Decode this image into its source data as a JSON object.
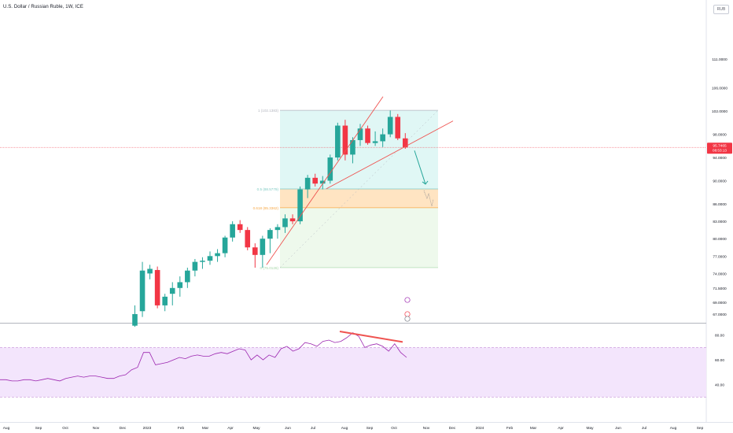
{
  "title": "U.S. Dollar / Russian Ruble, 1W, ICE",
  "currency_button": "RUB",
  "price_axis": [
    "111.0000",
    "106.0000",
    "102.0000",
    "98.0000",
    "94.0000",
    "90.0000",
    "86.0000",
    "83.0000",
    "80.0000",
    "77.0000",
    "74.0000",
    "71.5000",
    "69.0000",
    "67.0000"
  ],
  "current_price": {
    "value": "95.7465",
    "countdown": "08:53:13",
    "color": "#f23645"
  },
  "rsi_axis": [
    "80.00",
    "60.00",
    "40.00"
  ],
  "time_axis": [
    "Aug",
    "Sep",
    "Oct",
    "Nov",
    "Dec",
    "2023",
    "Feb",
    "Mar",
    "Apr",
    "May",
    "Jun",
    "Jul",
    "Aug",
    "Sep",
    "Oct",
    "Nov",
    "Dec",
    "2024",
    "Feb",
    "Mar",
    "Apr",
    "May",
    "Jun",
    "Jul",
    "Aug",
    "Sep"
  ],
  "fib_labels": {
    "level_1": "1 (102.1383)",
    "level_05": "0.5 (88.5779)",
    "level_0618": "0.618 (85.3362)",
    "level_0": "0 (75.0126)"
  },
  "colors": {
    "up": "#26a69a",
    "down": "#f23645",
    "trendline": "#ef5350",
    "arrow": "#26a69a",
    "rsi": "#9c27b0",
    "rsi_band": "#f3e5fc",
    "fib_top": "#e0f7f5",
    "fib_golden": "#ffe4c2",
    "fib_bottom": "#eef9ec"
  },
  "chart_data": {
    "type": "candlestick",
    "symbol": "U.S. Dollar / Russian Ruble",
    "interval": "1W",
    "exchange": "ICE",
    "ohlc": [
      [
        65.0,
        68.5,
        64.8,
        67.0
      ],
      [
        67.5,
        76.0,
        66.5,
        74.5
      ],
      [
        74.0,
        75.5,
        73.0,
        74.8
      ],
      [
        74.6,
        75.2,
        68.0,
        68.5
      ],
      [
        68.5,
        70.5,
        67.5,
        70.0
      ],
      [
        70.5,
        72.5,
        68.5,
        71.5
      ],
      [
        71.5,
        73.5,
        70.0,
        72.5
      ],
      [
        72.5,
        75.0,
        71.5,
        74.5
      ],
      [
        74.5,
        76.5,
        73.5,
        76.0
      ],
      [
        76.0,
        76.8,
        74.8,
        76.2
      ],
      [
        76.2,
        77.8,
        75.5,
        77.0
      ],
      [
        77.0,
        78.2,
        76.0,
        77.5
      ],
      [
        77.5,
        80.5,
        76.8,
        80.2
      ],
      [
        80.2,
        83.0,
        79.5,
        82.5
      ],
      [
        82.5,
        83.2,
        81.0,
        81.5
      ],
      [
        81.5,
        82.0,
        78.0,
        78.5
      ],
      [
        78.5,
        79.2,
        75.0,
        77.2
      ],
      [
        77.2,
        80.5,
        75.0,
        80.0
      ],
      [
        80.0,
        81.8,
        77.5,
        81.5
      ],
      [
        81.5,
        82.5,
        80.0,
        82.0
      ],
      [
        82.0,
        84.2,
        81.0,
        83.5
      ],
      [
        83.5,
        84.2,
        82.5,
        83.0
      ],
      [
        83.0,
        89.0,
        82.5,
        88.5
      ],
      [
        88.5,
        91.0,
        87.0,
        90.5
      ],
      [
        90.5,
        91.2,
        89.0,
        89.5
      ],
      [
        89.5,
        90.8,
        88.5,
        90.0
      ],
      [
        90.0,
        94.5,
        89.5,
        94.0
      ],
      [
        94.0,
        100.0,
        93.5,
        99.5
      ],
      [
        99.5,
        100.5,
        93.5,
        94.5
      ],
      [
        94.5,
        97.5,
        93.0,
        97.0
      ],
      [
        97.0,
        99.8,
        96.0,
        99.0
      ],
      [
        99.0,
        99.5,
        96.2,
        96.5
      ],
      [
        96.5,
        98.5,
        96.0,
        96.8
      ],
      [
        96.8,
        99.0,
        95.8,
        98.0
      ],
      [
        98.0,
        102.1,
        97.5,
        101.0
      ],
      [
        101.0,
        101.5,
        97.0,
        97.3
      ],
      [
        97.3,
        98.2,
        95.5,
        95.75
      ]
    ],
    "fibonacci_retracement": {
      "1": 102.1383,
      "0.5": 88.5779,
      "0.618": 85.3362,
      "0": 75.0126
    },
    "rsi": [
      44,
      44,
      43,
      43,
      44,
      44,
      43,
      44,
      45,
      44,
      43,
      45,
      46,
      47,
      46,
      47,
      47,
      46,
      45,
      45,
      47,
      48,
      52,
      54,
      66,
      66,
      56,
      57,
      58,
      60,
      62,
      61,
      63,
      64,
      63,
      63,
      65,
      66,
      65,
      67,
      69,
      68,
      60,
      64,
      60,
      64,
      62,
      69,
      71,
      67,
      69,
      74,
      73,
      71,
      75,
      76,
      74,
      75,
      78,
      82,
      79,
      70,
      72,
      73,
      71,
      67,
      73,
      66,
      62
    ],
    "rsi_ylim": [
      20,
      90
    ],
    "rsi_bands": [
      30,
      70
    ],
    "ylim": [
      65.5,
      116
    ]
  }
}
